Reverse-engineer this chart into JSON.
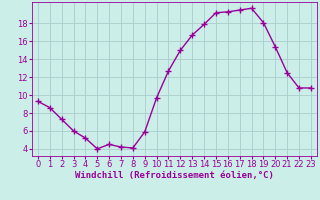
{
  "x": [
    0,
    1,
    2,
    3,
    4,
    5,
    6,
    7,
    8,
    9,
    10,
    11,
    12,
    13,
    14,
    15,
    16,
    17,
    18,
    19,
    20,
    21,
    22,
    23
  ],
  "y": [
    9.3,
    8.6,
    7.3,
    6.0,
    5.2,
    4.0,
    4.5,
    4.2,
    4.1,
    5.9,
    9.7,
    12.7,
    15.0,
    16.7,
    17.9,
    19.2,
    19.3,
    19.5,
    19.7,
    18.1,
    15.4,
    12.5,
    10.8,
    10.8
  ],
  "line_color": "#990099",
  "marker": "+",
  "markersize": 4,
  "linewidth": 1.0,
  "bg_color": "#cceee8",
  "grid_color": "#aacccc",
  "xlabel": "Windchill (Refroidissement éolien,°C)",
  "xlabel_color": "#990099",
  "xlabel_fontsize": 6.5,
  "tick_color": "#990099",
  "tick_fontsize": 6.0,
  "yticks": [
    4,
    6,
    8,
    10,
    12,
    14,
    16,
    18
  ],
  "ylim": [
    3.2,
    20.4
  ],
  "xlim": [
    -0.5,
    23.5
  ]
}
